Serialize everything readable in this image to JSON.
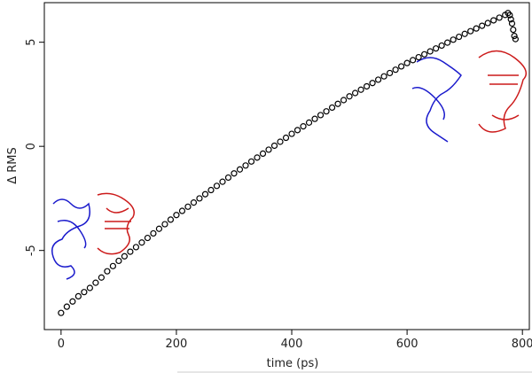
{
  "chart_data": {
    "type": "scatter",
    "x_label": "time (ps)",
    "y_label": "Δ RMS",
    "xlim": [
      -29,
      812
    ],
    "ylim": [
      -8.8,
      6.9
    ],
    "xticks": [
      0,
      200,
      400,
      600,
      800
    ],
    "yticks": [
      -5,
      0,
      5
    ],
    "grid": false,
    "series": [
      {
        "color": "#000000",
        "x": [
          0,
          10,
          20,
          30,
          40,
          50,
          60,
          70,
          80,
          90,
          100,
          110,
          120,
          130,
          140,
          150,
          160,
          170,
          180,
          190,
          200,
          210,
          220,
          230,
          240,
          250,
          260,
          270,
          280,
          290,
          300,
          310,
          320,
          330,
          340,
          350,
          360,
          370,
          380,
          390,
          400,
          410,
          420,
          430,
          440,
          450,
          460,
          470,
          480,
          490,
          500,
          510,
          520,
          530,
          540,
          550,
          560,
          570,
          580,
          590,
          600,
          610,
          620,
          630,
          640,
          650,
          660,
          670,
          680,
          690,
          700,
          710,
          720,
          730,
          740,
          750,
          760,
          770,
          775,
          778,
          780,
          782,
          784,
          786,
          788
        ],
        "values": [
          -8.0,
          -7.7,
          -7.45,
          -7.2,
          -7.0,
          -6.8,
          -6.55,
          -6.3,
          -6.0,
          -5.75,
          -5.5,
          -5.28,
          -5.06,
          -4.84,
          -4.62,
          -4.4,
          -4.18,
          -3.96,
          -3.74,
          -3.52,
          -3.3,
          -3.1,
          -2.9,
          -2.7,
          -2.5,
          -2.3,
          -2.1,
          -1.9,
          -1.7,
          -1.5,
          -1.3,
          -1.11,
          -0.92,
          -0.73,
          -0.54,
          -0.35,
          -0.16,
          0.03,
          0.22,
          0.41,
          0.6,
          0.78,
          0.96,
          1.14,
          1.32,
          1.5,
          1.68,
          1.86,
          2.04,
          2.22,
          2.4,
          2.56,
          2.72,
          2.88,
          3.04,
          3.2,
          3.36,
          3.52,
          3.68,
          3.84,
          4.0,
          4.14,
          4.28,
          4.42,
          4.56,
          4.7,
          4.84,
          4.98,
          5.12,
          5.26,
          5.4,
          5.53,
          5.66,
          5.79,
          5.92,
          6.05,
          6.18,
          6.31,
          6.4,
          6.3,
          6.1,
          5.9,
          5.6,
          5.3,
          5.15
        ]
      }
    ]
  }
}
